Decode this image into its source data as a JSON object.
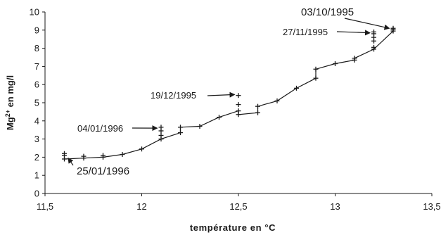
{
  "chart_data": {
    "type": "line",
    "title": "",
    "xlabel": "température en °C",
    "ylabel_parts": [
      "Mg",
      "2+",
      " en mg/l"
    ],
    "xlim": [
      11.5,
      13.5
    ],
    "ylim": [
      0,
      10
    ],
    "x_ticks": [
      "11,5",
      "12",
      "12,5",
      "13",
      "13,5"
    ],
    "y_ticks": [
      "0",
      "1",
      "2",
      "3",
      "4",
      "5",
      "6",
      "7",
      "8",
      "9",
      "10"
    ],
    "grid": false,
    "legend": "none",
    "series": [
      {
        "marker": "plus",
        "color": "#1a1a1a",
        "points": [
          [
            11.6,
            1.9
          ],
          [
            11.7,
            1.95
          ],
          [
            11.8,
            2.0
          ],
          [
            11.9,
            2.15
          ],
          [
            12.0,
            2.45
          ],
          [
            12.1,
            3.0
          ],
          [
            12.2,
            3.35
          ],
          [
            12.2,
            3.65
          ],
          [
            12.3,
            3.7
          ],
          [
            12.4,
            4.2
          ],
          [
            12.5,
            4.55
          ],
          [
            12.5,
            4.35
          ],
          [
            12.6,
            4.45
          ],
          [
            12.6,
            4.8
          ],
          [
            12.7,
            5.1
          ],
          [
            12.8,
            5.8
          ],
          [
            12.9,
            6.35
          ],
          [
            12.9,
            6.85
          ],
          [
            13.0,
            7.15
          ],
          [
            13.1,
            7.35
          ],
          [
            13.1,
            7.45
          ],
          [
            13.2,
            7.95
          ],
          [
            13.3,
            8.95
          ],
          [
            13.3,
            9.05
          ]
        ]
      }
    ],
    "extra_markers": [
      [
        11.6,
        2.1
      ],
      [
        11.6,
        2.2
      ],
      [
        11.7,
        2.05
      ],
      [
        11.8,
        2.1
      ],
      [
        12.1,
        3.2
      ],
      [
        12.1,
        3.45
      ],
      [
        12.1,
        3.65
      ],
      [
        12.5,
        4.9
      ],
      [
        12.5,
        5.4
      ],
      [
        13.2,
        8.05
      ],
      [
        13.2,
        8.4
      ],
      [
        13.2,
        8.6
      ],
      [
        13.2,
        8.8
      ],
      [
        13.2,
        8.9
      ],
      [
        13.3,
        9.1
      ]
    ],
    "annotations": [
      {
        "text": "03/10/1995",
        "to": [
          13.28,
          9.1
        ],
        "size": "big"
      },
      {
        "text": "27/11/1995",
        "to": [
          13.18,
          8.85
        ],
        "size": "normal"
      },
      {
        "text": "19/12/1995",
        "to": [
          12.48,
          5.45
        ],
        "size": "normal"
      },
      {
        "text": "04/01/1996",
        "to": [
          12.08,
          3.6
        ],
        "size": "normal"
      },
      {
        "text": "25/01/1996",
        "to": [
          11.62,
          1.95
        ],
        "size": "big"
      }
    ],
    "colors": {
      "ink": "#1a1a1a",
      "background": "#ffffff"
    }
  }
}
